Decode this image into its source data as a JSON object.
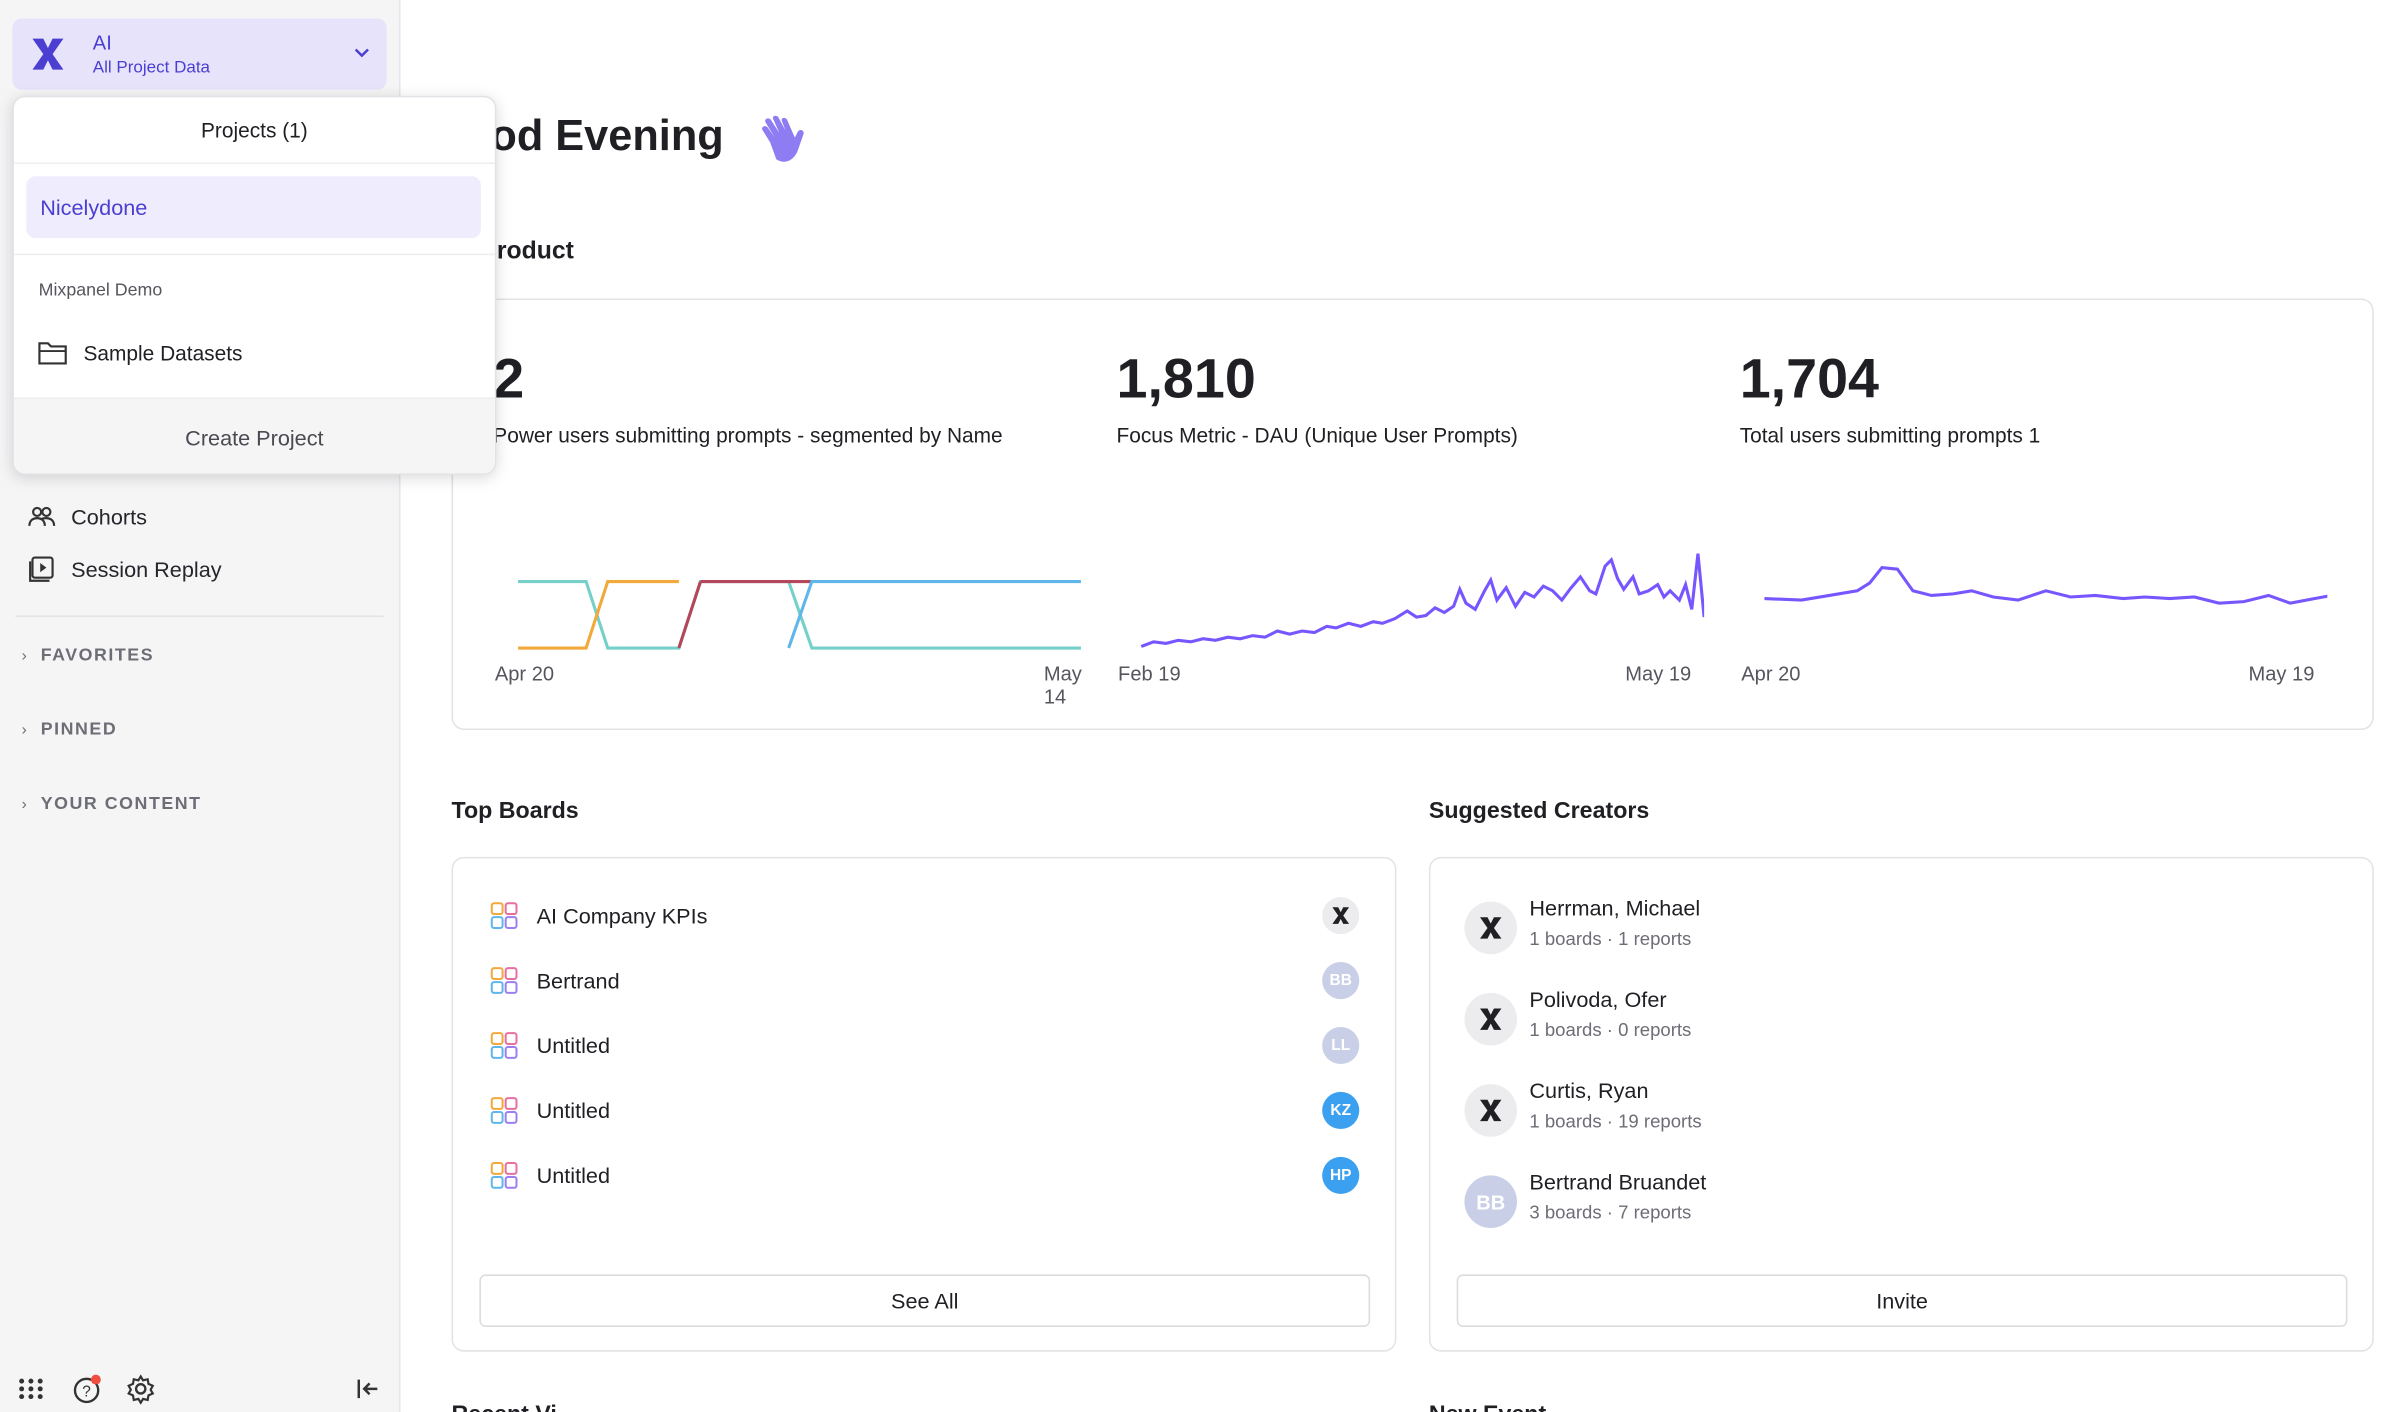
{
  "project_switcher": {
    "name": "AI",
    "subtitle": "All Project Data"
  },
  "dropdown": {
    "header": "Projects (1)",
    "selected_project": "Nicelydone",
    "group_label": "Mixpanel Demo",
    "group_item": "Sample Datasets",
    "footer_button": "Create Project"
  },
  "sidebar": {
    "items": [
      {
        "label": "Cohorts",
        "icon": "cohorts-icon"
      },
      {
        "label": "Session Replay",
        "icon": "session-replay-icon"
      }
    ],
    "sections": [
      "FAVORITES",
      "PINNED",
      "YOUR CONTENT"
    ]
  },
  "main": {
    "greeting": "ood Evening",
    "product_title": "r Product",
    "metrics": [
      {
        "value": "2",
        "label": "Power users submitting prompts - segmented by Name",
        "x_start": "Apr 20",
        "x_end": "May 14"
      },
      {
        "value": "1,810",
        "label": "Focus Metric - DAU (Unique User Prompts)",
        "x_start": "Feb 19",
        "x_end": "May 19"
      },
      {
        "value": "1,704",
        "label": "Total users submitting prompts 1",
        "x_start": "Apr 20",
        "x_end": "May 19"
      }
    ],
    "top_boards": {
      "title": "Top Boards",
      "rows": [
        {
          "name": "AI Company KPIs",
          "avatar": "",
          "avatar_color": "#ececee"
        },
        {
          "name": "Bertrand",
          "avatar": "BB",
          "avatar_color": "#c9cfe6"
        },
        {
          "name": "Untitled",
          "avatar": "LL",
          "avatar_color": "#c9cfe6"
        },
        {
          "name": "Untitled",
          "avatar": "KZ",
          "avatar_color": "#3aa0ef"
        },
        {
          "name": "Untitled",
          "avatar": "HP",
          "avatar_color": "#3aa0ef"
        }
      ],
      "button": "See All"
    },
    "suggested_creators": {
      "title": "Suggested Creators",
      "rows": [
        {
          "name": "Herrman, Michael",
          "meta": "1 boards · 1 reports",
          "avatar": ""
        },
        {
          "name": "Polivoda, Ofer",
          "meta": "1 boards · 0 reports",
          "avatar": ""
        },
        {
          "name": "Curtis, Ryan",
          "meta": "1 boards · 19 reports",
          "avatar": ""
        },
        {
          "name": "Bertrand Bruandet",
          "meta": "3 boards · 7 reports",
          "avatar": "BB"
        }
      ],
      "button": "Invite"
    },
    "cut_titles": [
      "Recent Vi",
      "New Event"
    ]
  },
  "colors": {
    "accent": "#4b3fd1",
    "line": "#7856ff",
    "selected_bg": "#efedfd"
  }
}
